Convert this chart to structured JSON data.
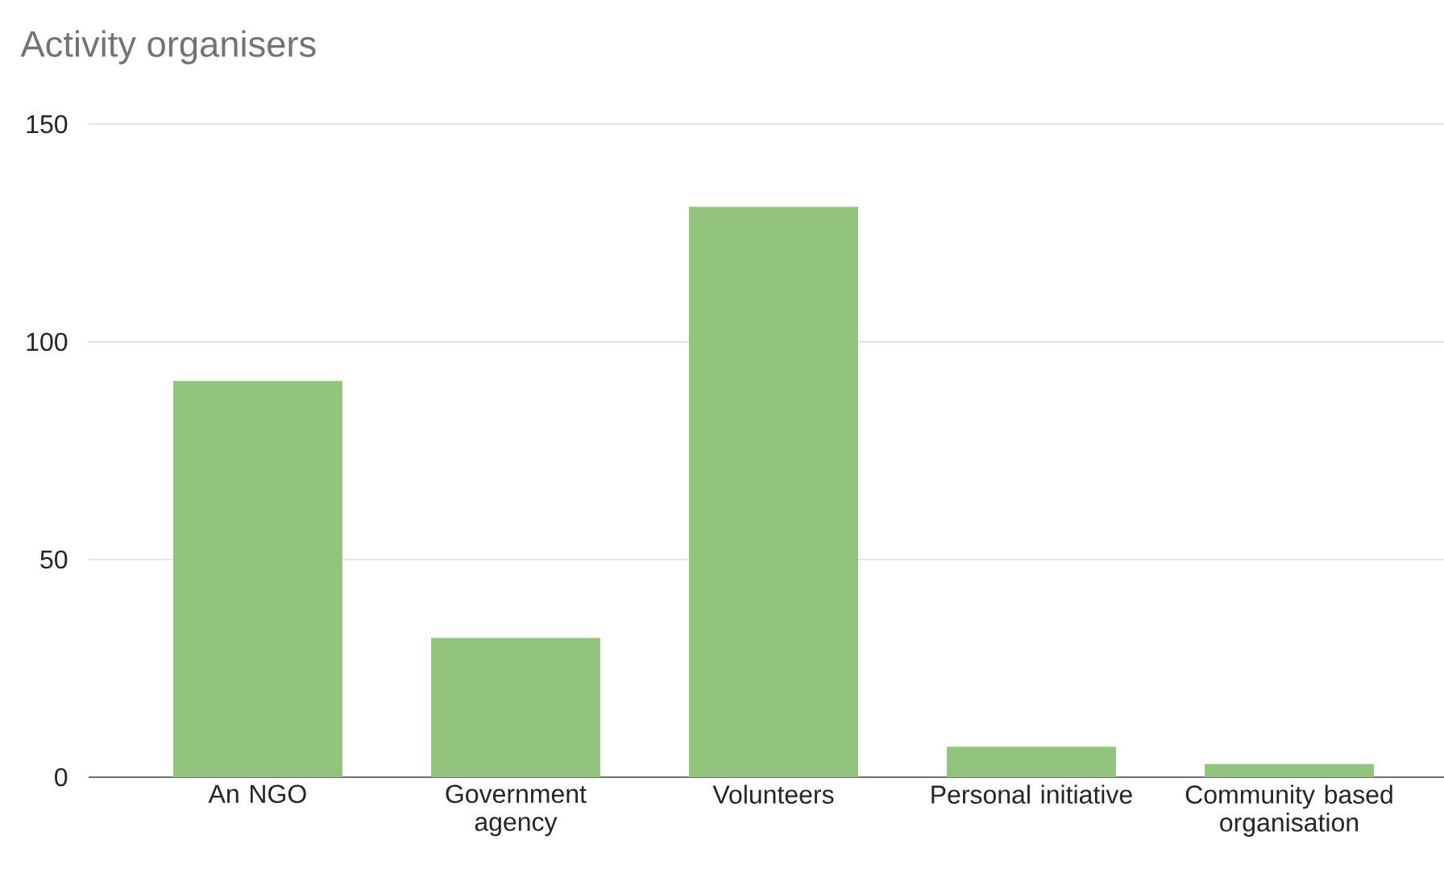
{
  "chart_data": {
    "type": "bar",
    "title": "Activity organisers",
    "categories": [
      "An NGO",
      "Government agency",
      "Volunteers",
      "Personal initiative",
      "Community based organisation"
    ],
    "values": [
      91,
      32,
      131,
      7,
      3
    ],
    "color": "#93c47d",
    "ylim": [
      0,
      150
    ],
    "yticks": [
      0,
      50,
      100,
      150
    ],
    "grid": "y"
  }
}
